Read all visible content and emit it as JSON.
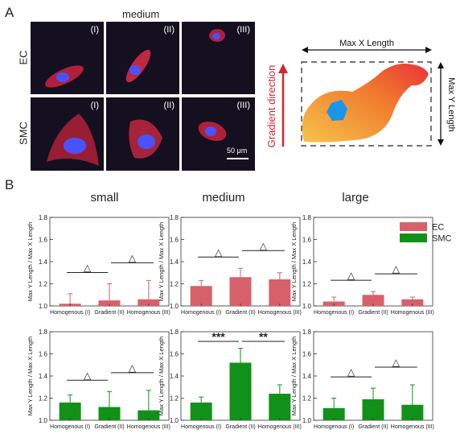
{
  "panel_a": {
    "letter": "A",
    "column_title": "medium",
    "rows": [
      {
        "label": "EC",
        "tiles": [
          "(I)",
          "(II)",
          "(III)"
        ]
      },
      {
        "label": "SMC",
        "tiles": [
          "(I)",
          "(II)",
          "(III)"
        ]
      }
    ],
    "scale_bar": "50 μm",
    "diagram": {
      "max_x_label": "Max X Length",
      "max_y_label": "Max Y Length",
      "gradient_label": "Gradient direction"
    }
  },
  "panel_b": {
    "letter": "B",
    "size_titles": [
      "small",
      "medium",
      "large"
    ],
    "legend": [
      {
        "name": "EC",
        "color": "#d6616b"
      },
      {
        "name": "SMC",
        "color": "#119119"
      }
    ]
  },
  "chart_data": [
    {
      "type": "bar",
      "group": "small",
      "series_name": "EC",
      "color": "#d6616b",
      "categories": [
        "Homogenous (I)",
        "Gradient (II)",
        "Homogenous (III)"
      ],
      "values": [
        1.02,
        1.05,
        1.06
      ],
      "errors": [
        0.09,
        0.15,
        0.17
      ],
      "ylabel": "Max Y Length / Max X Length",
      "ylim": [
        1.0,
        1.8
      ],
      "yticks": [
        "1.0",
        "1.2",
        "1.4",
        "1.6",
        "1.8"
      ],
      "annotations": [
        "△",
        "△"
      ]
    },
    {
      "type": "bar",
      "group": "medium",
      "series_name": "EC",
      "color": "#d6616b",
      "categories": [
        "Homogenous (I)",
        "Gradient (II)",
        "Homogenous (III)"
      ],
      "values": [
        1.18,
        1.26,
        1.24
      ],
      "errors": [
        0.05,
        0.08,
        0.06
      ],
      "ylabel": "Max Y Length / Max X Length",
      "ylim": [
        1.0,
        1.8
      ],
      "yticks": [
        "1.0",
        "1.2",
        "1.4",
        "1.6",
        "1.8"
      ],
      "annotations": [
        "△",
        "△"
      ]
    },
    {
      "type": "bar",
      "group": "large",
      "series_name": "EC",
      "color": "#d6616b",
      "categories": [
        "Homogenous (I)",
        "Gradient (II)",
        "Homogenous (III)"
      ],
      "values": [
        1.04,
        1.1,
        1.06
      ],
      "errors": [
        0.04,
        0.03,
        0.02
      ],
      "ylabel": "Max Y Length / Max X Length",
      "ylim": [
        1.0,
        1.8
      ],
      "yticks": [
        "1.0",
        "1.2",
        "1.4",
        "1.6",
        "1.8"
      ],
      "annotations": [
        "△",
        "△"
      ]
    },
    {
      "type": "bar",
      "group": "small",
      "series_name": "SMC",
      "color": "#119119",
      "categories": [
        "Homogenous (I)",
        "Gradient (II)",
        "Homogenous (III)"
      ],
      "values": [
        1.16,
        1.12,
        1.09
      ],
      "errors": [
        0.07,
        0.14,
        0.18
      ],
      "ylabel": "Max Y Length / Max X Length",
      "ylim": [
        1.0,
        1.8
      ],
      "yticks": [
        "1.0",
        "1.2",
        "1.4",
        "1.6",
        "1.8"
      ],
      "annotations": [
        "△",
        "△"
      ]
    },
    {
      "type": "bar",
      "group": "medium",
      "series_name": "SMC",
      "color": "#119119",
      "categories": [
        "Homogenous (I)",
        "Gradient (II)",
        "Homogenous (III)"
      ],
      "values": [
        1.16,
        1.52,
        1.24
      ],
      "errors": [
        0.05,
        0.13,
        0.08
      ],
      "ylabel": "Max Y Length / Max X Length",
      "ylim": [
        1.0,
        1.8
      ],
      "yticks": [
        "1.0",
        "1.2",
        "1.4",
        "1.6",
        "1.8"
      ],
      "annotations": [
        "***",
        "**"
      ]
    },
    {
      "type": "bar",
      "group": "large",
      "series_name": "SMC",
      "color": "#119119",
      "categories": [
        "Homogenous (I)",
        "Gradient (II)",
        "Homogenous (III)"
      ],
      "values": [
        1.11,
        1.19,
        1.14
      ],
      "errors": [
        0.09,
        0.1,
        0.18
      ],
      "ylabel": "Max Y Length / Max X Length",
      "ylim": [
        1.0,
        1.8
      ],
      "yticks": [
        "1.0",
        "1.2",
        "1.4",
        "1.6",
        "1.8"
      ],
      "annotations": [
        "△",
        "△"
      ]
    }
  ]
}
